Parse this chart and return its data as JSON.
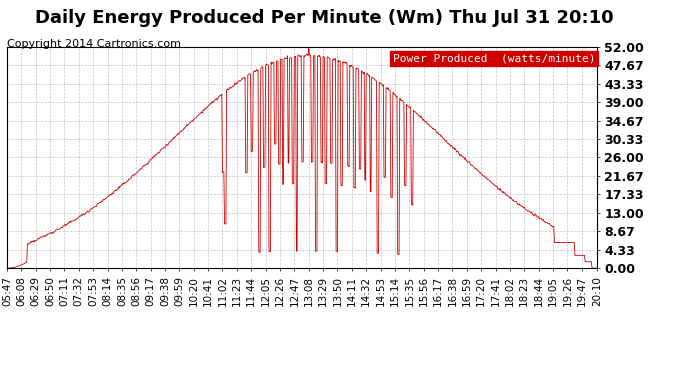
{
  "title": "Daily Energy Produced Per Minute (Wm) Thu Jul 31 20:10",
  "copyright": "Copyright 2014 Cartronics.com",
  "legend_label": "Power Produced  (watts/minute)",
  "legend_bg": "#cc0000",
  "legend_text_color": "#ffffff",
  "line_color": "#cc0000",
  "background_color": "#ffffff",
  "grid_color": "#aaaaaa",
  "y_max": 52.0,
  "y_min": 0.0,
  "y_ticks": [
    0.0,
    4.33,
    8.67,
    13.0,
    17.33,
    21.67,
    26.0,
    30.33,
    34.67,
    39.0,
    43.33,
    47.67,
    52.0
  ],
  "x_tick_labels": [
    "05:47",
    "06:08",
    "06:29",
    "06:50",
    "07:11",
    "07:32",
    "07:53",
    "08:14",
    "08:35",
    "08:56",
    "09:17",
    "09:38",
    "09:59",
    "10:20",
    "10:41",
    "11:02",
    "11:23",
    "11:44",
    "12:05",
    "12:26",
    "12:47",
    "13:08",
    "13:29",
    "13:50",
    "14:11",
    "14:32",
    "14:53",
    "15:14",
    "15:35",
    "15:56",
    "16:17",
    "16:38",
    "16:59",
    "17:20",
    "17:41",
    "18:02",
    "18:23",
    "18:44",
    "19:05",
    "19:26",
    "19:47",
    "20:10"
  ],
  "title_fontsize": 13,
  "copyright_fontsize": 8,
  "tick_fontsize": 7.5,
  "ytick_fontsize": 9,
  "legend_fontsize": 8
}
